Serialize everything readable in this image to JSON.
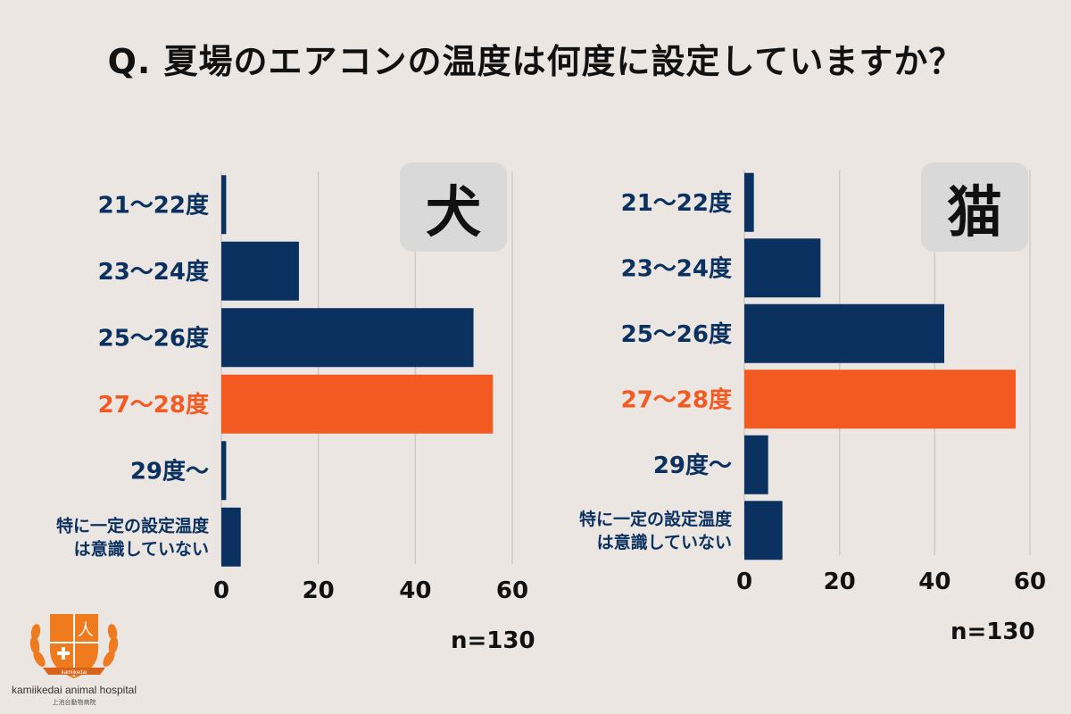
{
  "title": "Q. 夏場のエアコンの温度は何度に設定していますか？",
  "colors": {
    "navy": "#0b3160",
    "orange": "#f25a22",
    "grid": "#cfcac6",
    "bg": "#ebe6e2"
  },
  "chart_data": [
    {
      "type": "bar",
      "orientation": "horizontal",
      "badge": "犬",
      "n_label": "n=130",
      "categories": [
        "21〜22度",
        "23〜24度",
        "25〜26度",
        "27〜28度",
        "29度〜",
        "特に一定の設定温度\nは意識していない"
      ],
      "values": [
        1,
        16,
        52,
        56,
        1,
        4
      ],
      "highlight_index": 3,
      "xlim": [
        0,
        60
      ],
      "xticks": [
        0,
        20,
        40,
        60
      ],
      "grid": true
    },
    {
      "type": "bar",
      "orientation": "horizontal",
      "badge": "猫",
      "n_label": "n=130",
      "categories": [
        "21〜22度",
        "23〜24度",
        "25〜26度",
        "27〜28度",
        "29度〜",
        "特に一定の設定温度\nは意識していない"
      ],
      "values": [
        2,
        16,
        42,
        57,
        5,
        8
      ],
      "highlight_index": 3,
      "xlim": [
        0,
        60
      ],
      "xticks": [
        0,
        20,
        40,
        60
      ],
      "grid": true
    }
  ],
  "logo": {
    "name": "kamiikedai animal hospital",
    "sub": "上池台動物病院",
    "ribbon_text": "kamiikedai",
    "initials": "人"
  }
}
